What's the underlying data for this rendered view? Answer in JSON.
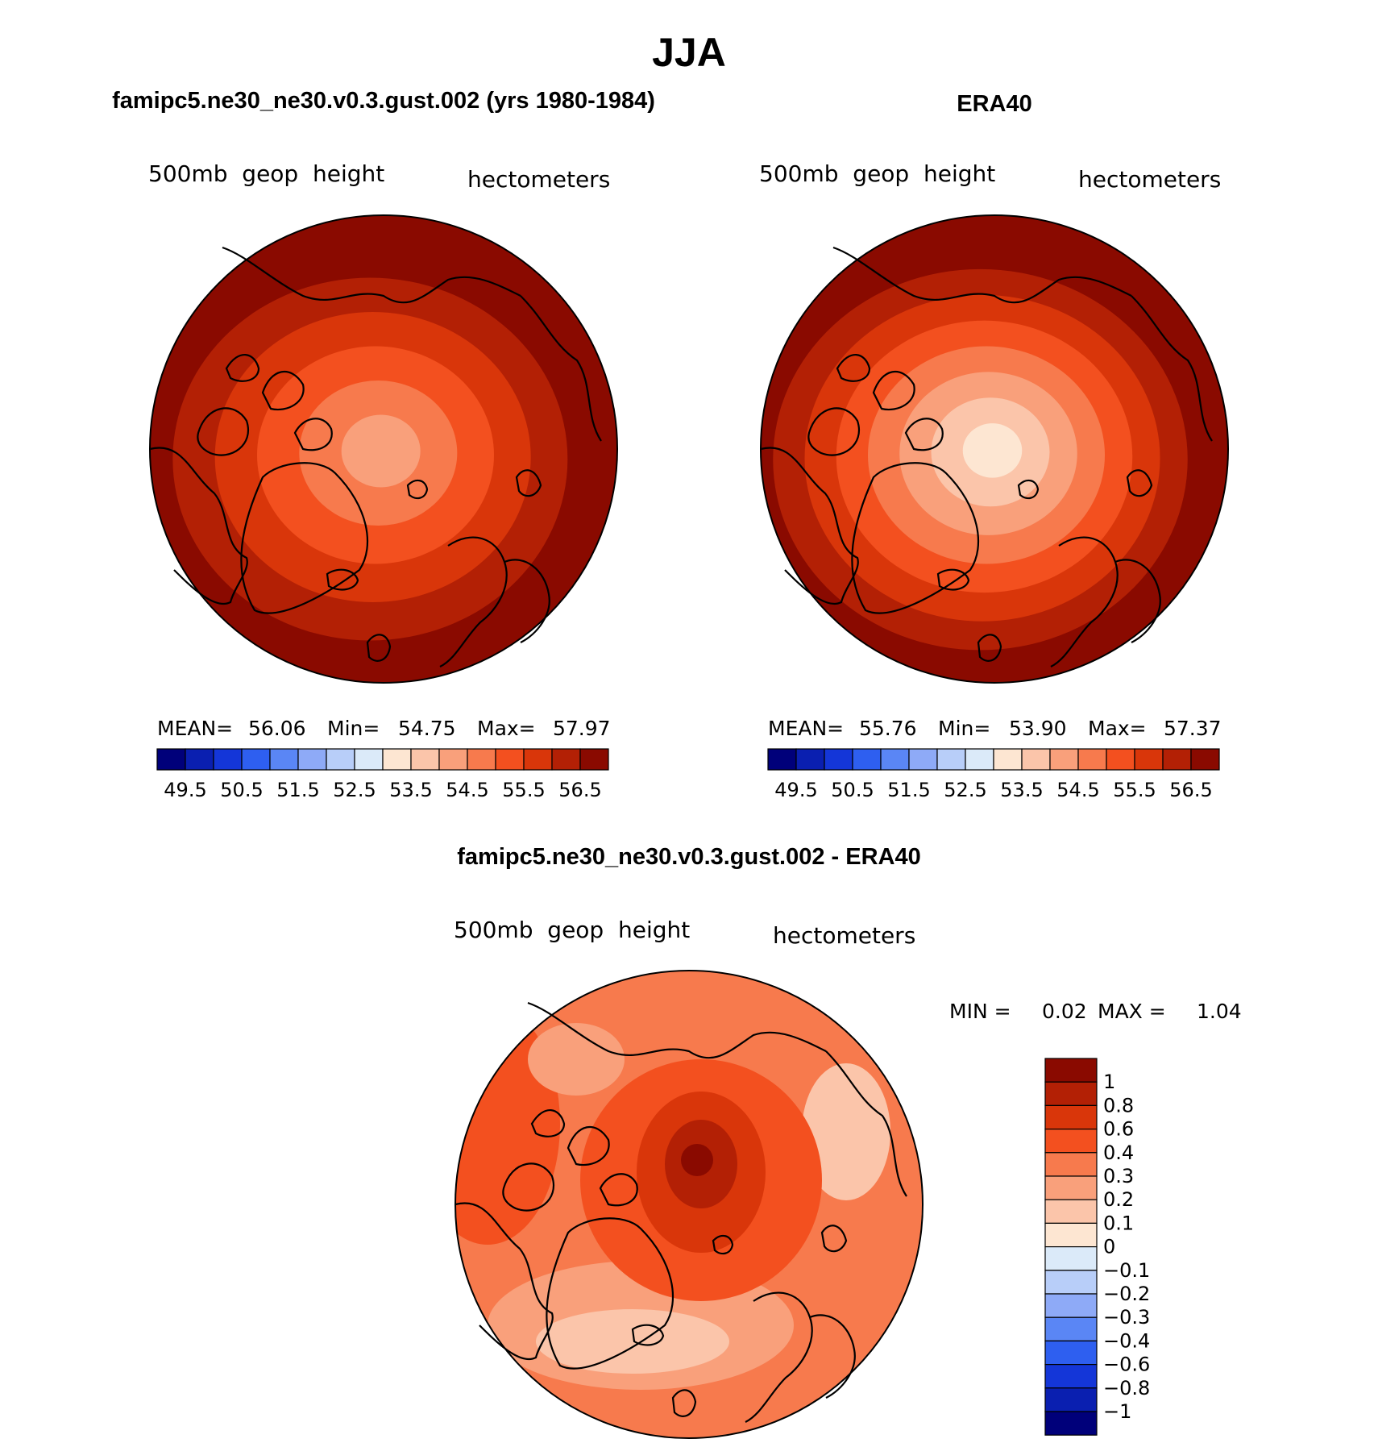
{
  "figure": {
    "main_title": "JJA",
    "units": "hectometers",
    "variable": "500mb  geop  height"
  },
  "chart_data": [
    {
      "type": "heatmap",
      "id": "model",
      "title": "famipc5.ne30_ne30.v0.3.gust.002 (yrs 1980-1984)",
      "variable": "500mb  geop  height",
      "units": "hectometers",
      "stats": {
        "mean_label": "MEAN=",
        "mean": "56.06",
        "min_label": "Min=",
        "min": "54.75",
        "max_label": "Max=",
        "max": "57.97"
      },
      "levels": [
        "49.5",
        "50.5",
        "51.5",
        "52.5",
        "53.5",
        "54.5",
        "55.5",
        "56.5"
      ],
      "colors": [
        "#00007a",
        "#0a1fb0",
        "#1436d8",
        "#2e5ff0",
        "#5a86f5",
        "#8eaaf7",
        "#b8cef9",
        "#dbeaf9",
        "#fde6d2",
        "#fbc5aa",
        "#f9a07b",
        "#f77a4d",
        "#f3501f",
        "#d9360a",
        "#b32005",
        "#8a0a00"
      ],
      "field_classes_center_to_edge": [
        10,
        11,
        12,
        13,
        14,
        15
      ]
    },
    {
      "type": "heatmap",
      "id": "obs",
      "title": "ERA40",
      "variable": "500mb  geop  height",
      "units": "hectometers",
      "stats": {
        "mean_label": "MEAN=",
        "mean": "55.76",
        "min_label": "Min=",
        "min": "53.90",
        "max_label": "Max=",
        "max": "57.37"
      },
      "levels": [
        "49.5",
        "50.5",
        "51.5",
        "52.5",
        "53.5",
        "54.5",
        "55.5",
        "56.5"
      ],
      "colors": [
        "#00007a",
        "#0a1fb0",
        "#1436d8",
        "#2e5ff0",
        "#5a86f5",
        "#8eaaf7",
        "#b8cef9",
        "#dbeaf9",
        "#fde6d2",
        "#fbc5aa",
        "#f9a07b",
        "#f77a4d",
        "#f3501f",
        "#d9360a",
        "#b32005",
        "#8a0a00"
      ],
      "field_classes_center_to_edge": [
        8,
        9,
        10,
        11,
        12,
        13,
        14,
        15
      ]
    },
    {
      "type": "heatmap",
      "id": "diff",
      "title": "famipc5.ne30_ne30.v0.3.gust.002 - ERA40",
      "variable": "500mb  geop  height",
      "units": "hectometers",
      "stats": {
        "min_label": "MIN =",
        "min": "0.02",
        "max_label": "MAX =",
        "max": "1.04"
      },
      "levels": [
        "1",
        "0.8",
        "0.6",
        "0.4",
        "0.3",
        "0.2",
        "0.1",
        "0",
        "−0.1",
        "−0.2",
        "−0.3",
        "−0.4",
        "−0.6",
        "−0.8",
        "−1"
      ],
      "colors": [
        "#8a0a00",
        "#b32005",
        "#d9360a",
        "#f3501f",
        "#f77a4d",
        "#f9a07b",
        "#fbc5aa",
        "#fde6d2",
        "#dbeaf9",
        "#b8cef9",
        "#8eaaf7",
        "#5a86f5",
        "#2e5ff0",
        "#1436d8",
        "#0a1fb0",
        "#00007a"
      ]
    }
  ]
}
